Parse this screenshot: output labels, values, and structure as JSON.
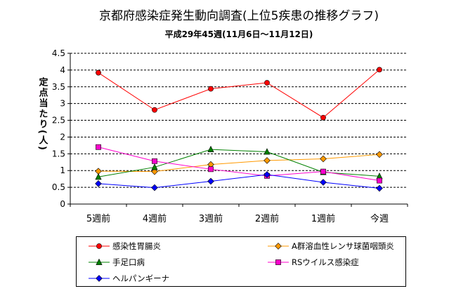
{
  "chart_data": {
    "type": "line",
    "title": "京都府感染症発生動向調査(上位5疾患の推移グラフ)",
    "subtitle": "平成29年45週(11月6日〜11月12日)",
    "ylabel": "定点当たり(人)",
    "xlabel": "",
    "categories": [
      "5週前",
      "4週前",
      "3週前",
      "2週前",
      "1週前",
      "今週"
    ],
    "ylim": [
      0,
      4.5
    ],
    "yticks": [
      "0",
      "0.5",
      "1",
      "1.5",
      "2",
      "2.5",
      "3",
      "3.5",
      "4",
      "4.5"
    ],
    "grid": true,
    "legend_position": "bottom",
    "series": [
      {
        "name": "感染性胃腸炎",
        "color": "#ff0000",
        "marker": "circle",
        "values": [
          3.92,
          2.81,
          3.44,
          3.62,
          2.58,
          4.01
        ]
      },
      {
        "name": "A群溶血性レンサ球菌咽頭炎",
        "color": "#ff9900",
        "marker": "diamond",
        "values": [
          0.98,
          0.97,
          1.18,
          1.3,
          1.35,
          1.48
        ]
      },
      {
        "name": "手足口病",
        "color": "#008000",
        "marker": "triangle",
        "values": [
          0.81,
          1.1,
          1.63,
          1.56,
          0.95,
          0.83
        ]
      },
      {
        "name": "RSウイルス感染症",
        "color": "#ff00cc",
        "marker": "square",
        "values": [
          1.7,
          1.28,
          1.04,
          0.84,
          0.97,
          0.7
        ]
      },
      {
        "name": "ヘルパンギーナ",
        "color": "#0000ff",
        "marker": "diamond",
        "values": [
          0.61,
          0.49,
          0.68,
          0.88,
          0.65,
          0.47
        ]
      }
    ]
  }
}
